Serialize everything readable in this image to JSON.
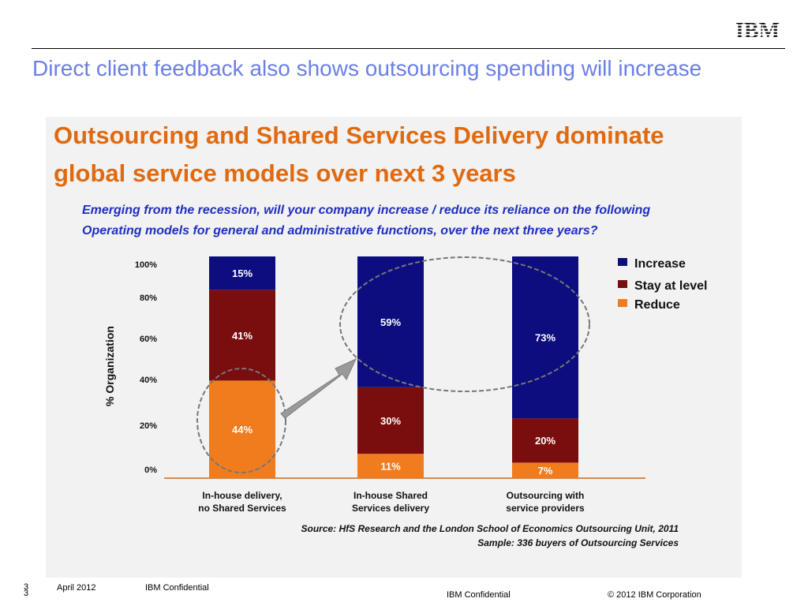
{
  "header": {
    "brand": "IBM",
    "slide_title": "Direct client feedback also shows outsourcing spending will increase"
  },
  "figure": {
    "heading_line1": "Outsourcing and Shared Services Delivery dominate",
    "heading_line2": "global service models over next 3 years",
    "question_line1": "Emerging from the recession, will your company increase / reduce its reliance on the following",
    "question_line2": "Operating models for general and administrative functions, over the next three years?",
    "source_line1": "Source: HfS Research and the London School of Economics Outsourcing Unit, 2011",
    "source_line2": "Sample: 336 buyers of Outsourcing Services"
  },
  "chart_data": {
    "type": "bar",
    "stacked": true,
    "categories": [
      [
        "In-house delivery,",
        "no Shared Services"
      ],
      [
        "In-house Shared",
        "Services delivery"
      ],
      [
        "Outsourcing with",
        "service providers"
      ]
    ],
    "series": [
      {
        "name": "Reduce",
        "color": "#f07c1e",
        "values": [
          44,
          11,
          7
        ]
      },
      {
        "name": "Stay at level",
        "color": "#7a0d0d",
        "values": [
          41,
          30,
          20
        ]
      },
      {
        "name": "Increase",
        "color": "#0d0d80",
        "values": [
          15,
          59,
          73
        ]
      }
    ],
    "value_labels": [
      [
        "44%",
        "11%",
        "7%"
      ],
      [
        "41%",
        "30%",
        "20%"
      ],
      [
        "15%",
        "59%",
        "73%"
      ]
    ],
    "ylabel": "% Organization",
    "yticks": [
      "0%",
      "20%",
      "40%",
      "60%",
      "80%",
      "100%"
    ],
    "ylim": [
      0,
      100
    ],
    "legend": [
      "Increase",
      "Stay at level",
      "Reduce"
    ],
    "legend_position": "right"
  },
  "footer": {
    "page_number": "3",
    "page_number_2": "3",
    "date": "April 2012",
    "confidential_left": "IBM Confidential",
    "confidential_center": "IBM Confidential",
    "copyright": "© 2012 IBM Corporation"
  }
}
